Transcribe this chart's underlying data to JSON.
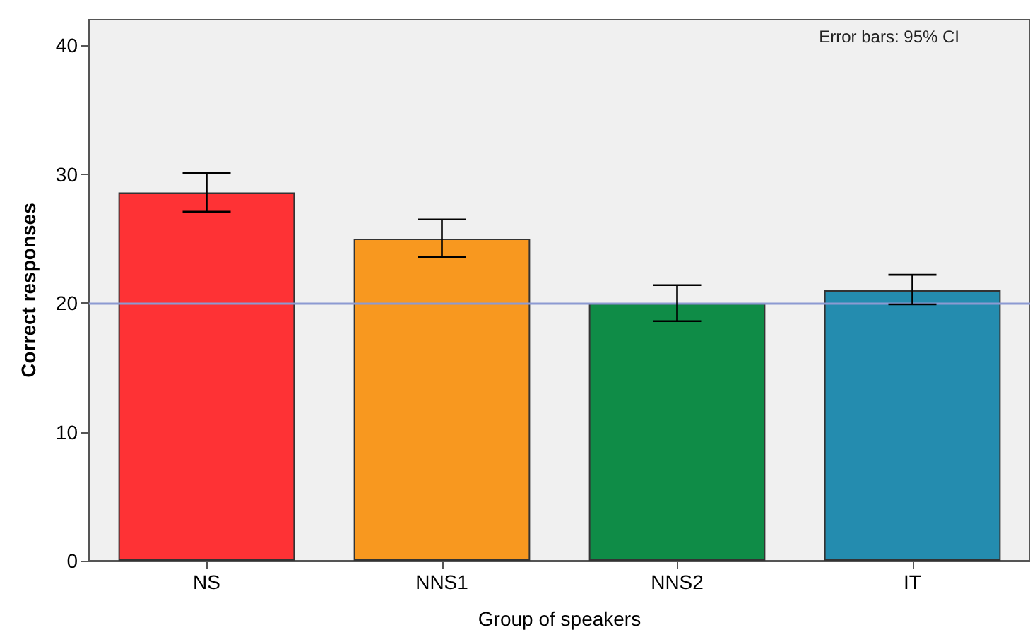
{
  "chart_data": {
    "type": "bar",
    "xlabel": "Group of speakers",
    "ylabel": "Correct responses",
    "categories": [
      "NS",
      "NNS1",
      "NNS2",
      "IT"
    ],
    "values": [
      28.6,
      25.0,
      20.0,
      21.0
    ],
    "colors": [
      "#fe3235",
      "#f8981f",
      "#0f8c47",
      "#248caf"
    ],
    "errors": [
      [
        27.1,
        30.1
      ],
      [
        23.6,
        26.5
      ],
      [
        18.6,
        21.4
      ],
      [
        19.9,
        22.2
      ]
    ],
    "ylim": [
      0,
      42
    ],
    "yticks": [
      0,
      10,
      20,
      30,
      40
    ],
    "ref_lines": [
      {
        "axis": "y",
        "value": 20.0,
        "color": "#8c9ad2"
      }
    ],
    "annotations": [
      "Error bars: 95% CI"
    ],
    "grid": false
  }
}
